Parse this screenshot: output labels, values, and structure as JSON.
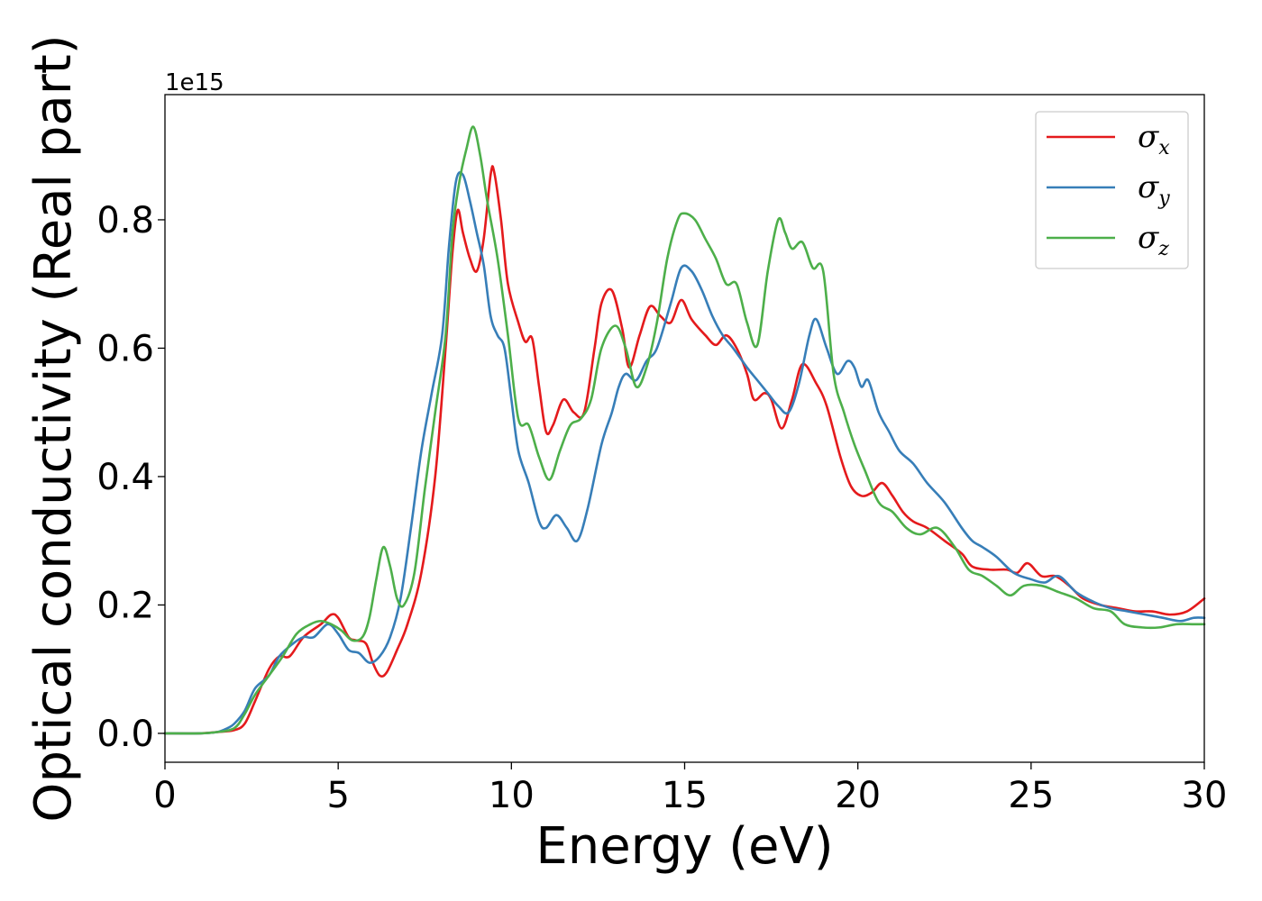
{
  "chart_data": {
    "type": "line",
    "xlabel": "Energy (eV)",
    "ylabel": "Optical conductivity (Real part)",
    "y_offset_label": "1e15",
    "xlim": [
      0,
      30
    ],
    "ylim": [
      -0.045,
      0.995
    ],
    "x_ticks": [
      0,
      5,
      10,
      15,
      20,
      25,
      30
    ],
    "x_tick_labels": [
      "0",
      "5",
      "10",
      "15",
      "20",
      "25",
      "30"
    ],
    "y_ticks": [
      0.0,
      0.2,
      0.4,
      0.6,
      0.8
    ],
    "y_tick_labels": [
      "0.0",
      "0.2",
      "0.4",
      "0.6",
      "0.8"
    ],
    "grid": false,
    "legend_position": "top-right",
    "series": [
      {
        "name": "σx",
        "symbol": "σ",
        "subscript": "x",
        "color": "#e41a1c",
        "points": [
          [
            0,
            0.0
          ],
          [
            1,
            0.0
          ],
          [
            1.5,
            0.002
          ],
          [
            2,
            0.005
          ],
          [
            2.3,
            0.015
          ],
          [
            2.6,
            0.05
          ],
          [
            3,
            0.1
          ],
          [
            3.3,
            0.12
          ],
          [
            3.6,
            0.12
          ],
          [
            4,
            0.15
          ],
          [
            4.5,
            0.17
          ],
          [
            4.8,
            0.185
          ],
          [
            5,
            0.18
          ],
          [
            5.3,
            0.15
          ],
          [
            5.5,
            0.145
          ],
          [
            5.8,
            0.14
          ],
          [
            6,
            0.11
          ],
          [
            6.2,
            0.09
          ],
          [
            6.4,
            0.095
          ],
          [
            6.7,
            0.13
          ],
          [
            7,
            0.17
          ],
          [
            7.4,
            0.25
          ],
          [
            7.8,
            0.4
          ],
          [
            8.1,
            0.6
          ],
          [
            8.3,
            0.75
          ],
          [
            8.45,
            0.815
          ],
          [
            8.6,
            0.78
          ],
          [
            8.8,
            0.74
          ],
          [
            9.0,
            0.72
          ],
          [
            9.2,
            0.77
          ],
          [
            9.4,
            0.87
          ],
          [
            9.5,
            0.875
          ],
          [
            9.7,
            0.8
          ],
          [
            9.9,
            0.7
          ],
          [
            10.2,
            0.64
          ],
          [
            10.4,
            0.61
          ],
          [
            10.6,
            0.615
          ],
          [
            10.8,
            0.54
          ],
          [
            11,
            0.47
          ],
          [
            11.2,
            0.48
          ],
          [
            11.5,
            0.52
          ],
          [
            11.8,
            0.5
          ],
          [
            12.1,
            0.5
          ],
          [
            12.4,
            0.6
          ],
          [
            12.6,
            0.67
          ],
          [
            12.9,
            0.69
          ],
          [
            13.2,
            0.63
          ],
          [
            13.4,
            0.57
          ],
          [
            13.7,
            0.62
          ],
          [
            14,
            0.665
          ],
          [
            14.3,
            0.65
          ],
          [
            14.6,
            0.64
          ],
          [
            14.9,
            0.675
          ],
          [
            15.2,
            0.645
          ],
          [
            15.6,
            0.62
          ],
          [
            15.9,
            0.605
          ],
          [
            16.2,
            0.62
          ],
          [
            16.5,
            0.6
          ],
          [
            16.8,
            0.56
          ],
          [
            17,
            0.52
          ],
          [
            17.3,
            0.53
          ],
          [
            17.5,
            0.52
          ],
          [
            17.8,
            0.475
          ],
          [
            18.1,
            0.52
          ],
          [
            18.4,
            0.575
          ],
          [
            18.8,
            0.545
          ],
          [
            19.1,
            0.51
          ],
          [
            19.5,
            0.43
          ],
          [
            19.8,
            0.385
          ],
          [
            20.1,
            0.37
          ],
          [
            20.4,
            0.375
          ],
          [
            20.7,
            0.39
          ],
          [
            21,
            0.37
          ],
          [
            21.3,
            0.345
          ],
          [
            21.6,
            0.33
          ],
          [
            22,
            0.32
          ],
          [
            22.5,
            0.3
          ],
          [
            23,
            0.28
          ],
          [
            23.3,
            0.26
          ],
          [
            23.8,
            0.255
          ],
          [
            24.3,
            0.255
          ],
          [
            24.6,
            0.25
          ],
          [
            24.9,
            0.265
          ],
          [
            25.3,
            0.245
          ],
          [
            25.7,
            0.245
          ],
          [
            26.1,
            0.23
          ],
          [
            26.5,
            0.21
          ],
          [
            27,
            0.2
          ],
          [
            27.5,
            0.195
          ],
          [
            28,
            0.19
          ],
          [
            28.5,
            0.19
          ],
          [
            29,
            0.185
          ],
          [
            29.5,
            0.19
          ],
          [
            30,
            0.21
          ]
        ]
      },
      {
        "name": "σy",
        "symbol": "σ",
        "subscript": "y",
        "color": "#377eb8",
        "points": [
          [
            0,
            0.0
          ],
          [
            1,
            0.0
          ],
          [
            1.5,
            0.002
          ],
          [
            1.8,
            0.008
          ],
          [
            2,
            0.015
          ],
          [
            2.3,
            0.035
          ],
          [
            2.6,
            0.07
          ],
          [
            3,
            0.09
          ],
          [
            3.3,
            0.12
          ],
          [
            3.7,
            0.14
          ],
          [
            4,
            0.15
          ],
          [
            4.3,
            0.15
          ],
          [
            4.7,
            0.17
          ],
          [
            5,
            0.155
          ],
          [
            5.3,
            0.13
          ],
          [
            5.6,
            0.125
          ],
          [
            5.9,
            0.11
          ],
          [
            6.2,
            0.12
          ],
          [
            6.5,
            0.15
          ],
          [
            6.8,
            0.21
          ],
          [
            7.1,
            0.32
          ],
          [
            7.4,
            0.44
          ],
          [
            7.7,
            0.53
          ],
          [
            8,
            0.62
          ],
          [
            8.2,
            0.76
          ],
          [
            8.4,
            0.86
          ],
          [
            8.6,
            0.87
          ],
          [
            8.8,
            0.83
          ],
          [
            9.0,
            0.78
          ],
          [
            9.2,
            0.73
          ],
          [
            9.4,
            0.65
          ],
          [
            9.6,
            0.62
          ],
          [
            9.8,
            0.6
          ],
          [
            10.0,
            0.52
          ],
          [
            10.2,
            0.44
          ],
          [
            10.5,
            0.39
          ],
          [
            10.8,
            0.33
          ],
          [
            11,
            0.32
          ],
          [
            11.3,
            0.34
          ],
          [
            11.6,
            0.32
          ],
          [
            11.9,
            0.3
          ],
          [
            12.2,
            0.35
          ],
          [
            12.6,
            0.45
          ],
          [
            12.9,
            0.5
          ],
          [
            13.1,
            0.54
          ],
          [
            13.3,
            0.56
          ],
          [
            13.6,
            0.55
          ],
          [
            13.9,
            0.58
          ],
          [
            14.2,
            0.6
          ],
          [
            14.6,
            0.67
          ],
          [
            14.9,
            0.725
          ],
          [
            15.2,
            0.72
          ],
          [
            15.5,
            0.69
          ],
          [
            15.8,
            0.65
          ],
          [
            16.1,
            0.62
          ],
          [
            16.4,
            0.6
          ],
          [
            16.8,
            0.57
          ],
          [
            17.1,
            0.55
          ],
          [
            17.4,
            0.53
          ],
          [
            17.7,
            0.51
          ],
          [
            18,
            0.5
          ],
          [
            18.3,
            0.545
          ],
          [
            18.6,
            0.62
          ],
          [
            18.8,
            0.645
          ],
          [
            19.1,
            0.6
          ],
          [
            19.4,
            0.56
          ],
          [
            19.7,
            0.58
          ],
          [
            19.9,
            0.57
          ],
          [
            20.1,
            0.54
          ],
          [
            20.3,
            0.55
          ],
          [
            20.6,
            0.5
          ],
          [
            20.9,
            0.47
          ],
          [
            21.2,
            0.44
          ],
          [
            21.6,
            0.42
          ],
          [
            22,
            0.39
          ],
          [
            22.5,
            0.36
          ],
          [
            23,
            0.32
          ],
          [
            23.3,
            0.3
          ],
          [
            23.6,
            0.29
          ],
          [
            24,
            0.275
          ],
          [
            24.5,
            0.25
          ],
          [
            25,
            0.24
          ],
          [
            25.4,
            0.235
          ],
          [
            25.8,
            0.245
          ],
          [
            26.3,
            0.22
          ],
          [
            26.8,
            0.205
          ],
          [
            27.3,
            0.195
          ],
          [
            27.8,
            0.19
          ],
          [
            28.3,
            0.185
          ],
          [
            28.8,
            0.18
          ],
          [
            29.3,
            0.175
          ],
          [
            29.7,
            0.18
          ],
          [
            30,
            0.18
          ]
        ]
      },
      {
        "name": "σz",
        "symbol": "σ",
        "subscript": "z",
        "color": "#4daf4a",
        "points": [
          [
            0,
            0.0
          ],
          [
            1,
            0.0
          ],
          [
            1.5,
            0.002
          ],
          [
            2,
            0.008
          ],
          [
            2.3,
            0.03
          ],
          [
            2.6,
            0.06
          ],
          [
            3,
            0.09
          ],
          [
            3.4,
            0.12
          ],
          [
            3.8,
            0.155
          ],
          [
            4.2,
            0.17
          ],
          [
            4.5,
            0.175
          ],
          [
            4.8,
            0.17
          ],
          [
            5.1,
            0.16
          ],
          [
            5.4,
            0.145
          ],
          [
            5.7,
            0.15
          ],
          [
            5.9,
            0.18
          ],
          [
            6.1,
            0.24
          ],
          [
            6.3,
            0.29
          ],
          [
            6.5,
            0.26
          ],
          [
            6.7,
            0.21
          ],
          [
            6.9,
            0.2
          ],
          [
            7.2,
            0.25
          ],
          [
            7.5,
            0.38
          ],
          [
            7.8,
            0.5
          ],
          [
            8.1,
            0.62
          ],
          [
            8.3,
            0.78
          ],
          [
            8.5,
            0.86
          ],
          [
            8.7,
            0.91
          ],
          [
            8.9,
            0.945
          ],
          [
            9.1,
            0.9
          ],
          [
            9.3,
            0.83
          ],
          [
            9.6,
            0.74
          ],
          [
            9.9,
            0.62
          ],
          [
            10.2,
            0.49
          ],
          [
            10.5,
            0.48
          ],
          [
            10.8,
            0.43
          ],
          [
            11.1,
            0.395
          ],
          [
            11.4,
            0.44
          ],
          [
            11.7,
            0.48
          ],
          [
            12.0,
            0.49
          ],
          [
            12.3,
            0.52
          ],
          [
            12.6,
            0.6
          ],
          [
            13.0,
            0.635
          ],
          [
            13.3,
            0.6
          ],
          [
            13.6,
            0.54
          ],
          [
            13.9,
            0.57
          ],
          [
            14.2,
            0.64
          ],
          [
            14.5,
            0.74
          ],
          [
            14.8,
            0.8
          ],
          [
            15.0,
            0.81
          ],
          [
            15.3,
            0.8
          ],
          [
            15.6,
            0.77
          ],
          [
            15.9,
            0.74
          ],
          [
            16.2,
            0.7
          ],
          [
            16.5,
            0.7
          ],
          [
            16.8,
            0.64
          ],
          [
            17.1,
            0.605
          ],
          [
            17.4,
            0.72
          ],
          [
            17.7,
            0.8
          ],
          [
            17.9,
            0.78
          ],
          [
            18.1,
            0.755
          ],
          [
            18.4,
            0.765
          ],
          [
            18.7,
            0.725
          ],
          [
            19.0,
            0.72
          ],
          [
            19.3,
            0.56
          ],
          [
            19.6,
            0.5
          ],
          [
            19.9,
            0.45
          ],
          [
            20.2,
            0.41
          ],
          [
            20.6,
            0.36
          ],
          [
            21,
            0.345
          ],
          [
            21.4,
            0.32
          ],
          [
            21.8,
            0.31
          ],
          [
            22.3,
            0.32
          ],
          [
            22.8,
            0.29
          ],
          [
            23.2,
            0.255
          ],
          [
            23.6,
            0.245
          ],
          [
            24,
            0.23
          ],
          [
            24.4,
            0.215
          ],
          [
            24.8,
            0.23
          ],
          [
            25.3,
            0.23
          ],
          [
            25.8,
            0.22
          ],
          [
            26.3,
            0.21
          ],
          [
            26.8,
            0.195
          ],
          [
            27.3,
            0.19
          ],
          [
            27.7,
            0.17
          ],
          [
            28.2,
            0.165
          ],
          [
            28.7,
            0.165
          ],
          [
            29.2,
            0.17
          ],
          [
            29.7,
            0.17
          ],
          [
            30,
            0.17
          ]
        ]
      }
    ]
  }
}
